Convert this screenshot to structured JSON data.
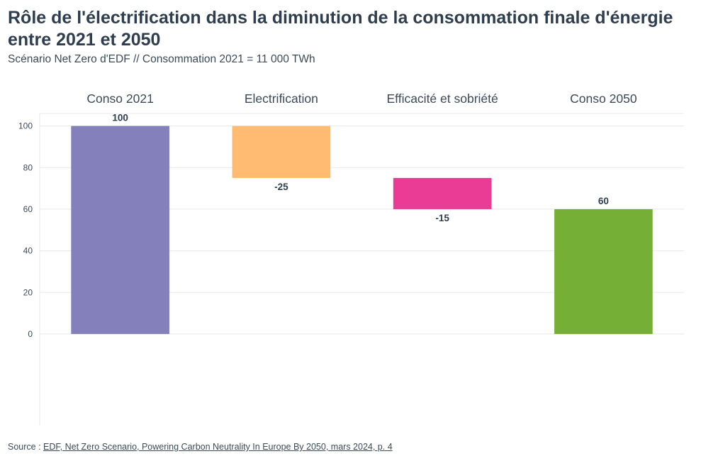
{
  "header": {
    "title": "Rôle de l'électrification dans la diminution de la consommation finale d'énergie entre 2021 et 2050",
    "subtitle": "Scénario Net Zero d'EDF // Consommation 2021 = 11 000 TWh"
  },
  "footer": {
    "source_prefix": "Source : ",
    "source_link": "EDF, Net Zero Scenario, Powering Carbon Neutrality In Europe By 2050, mars 2024, p. 4"
  },
  "chart_data": {
    "type": "bar",
    "subtype": "waterfall",
    "categories": [
      "Conso 2021",
      "Electrification",
      "Efficacité et sobriété",
      "Conso 2050"
    ],
    "bars": [
      {
        "category": "Conso 2021",
        "start": 0,
        "end": 100,
        "label": "100",
        "color": "#8480bb"
      },
      {
        "category": "Electrification",
        "start": 100,
        "end": 75,
        "label": "-25",
        "color": "#ffbb72"
      },
      {
        "category": "Efficacité et sobriété",
        "start": 75,
        "end": 60,
        "label": "-15",
        "color": "#ea3c94"
      },
      {
        "category": "Conso 2050",
        "start": 0,
        "end": 60,
        "label": "60",
        "color": "#76af36"
      }
    ],
    "yticks": [
      "0",
      "20",
      "40",
      "60",
      "80",
      "100"
    ],
    "ytick_values": [
      0,
      20,
      40,
      60,
      80,
      100
    ],
    "ylim": [
      -44,
      106
    ],
    "grid": true,
    "category_labels_position": "top"
  }
}
